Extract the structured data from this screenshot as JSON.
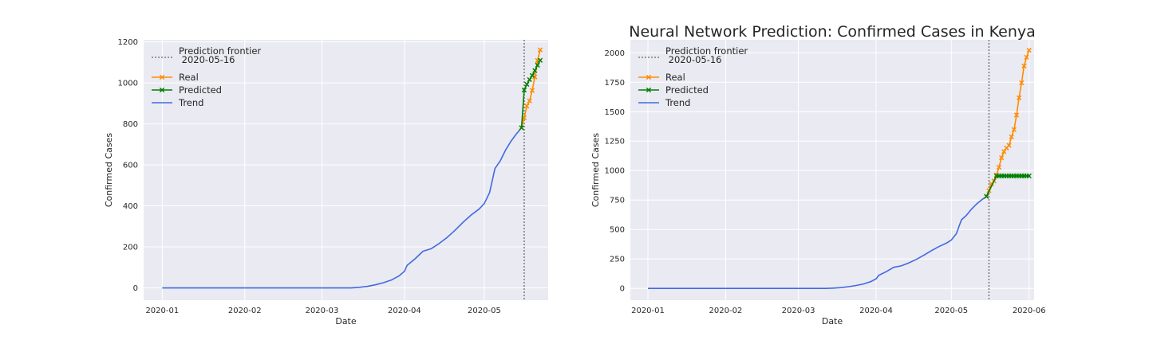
{
  "chart_data": [
    {
      "type": "line",
      "title": "",
      "xlabel": "Date",
      "ylabel": "Confirmed Cases",
      "grid": true,
      "legend_position": "top-left",
      "xlim": [
        "2019-12-25",
        "2020-05-25"
      ],
      "ylim": [
        -60,
        1210
      ],
      "x_ticks": [
        "2020-01-01",
        "2020-02-01",
        "2020-03-01",
        "2020-04-01",
        "2020-05-01"
      ],
      "x_tick_labels": [
        "2020-01",
        "2020-02",
        "2020-03",
        "2020-04",
        "2020-05"
      ],
      "y_ticks": [
        0,
        200,
        400,
        600,
        800,
        1000,
        1200
      ],
      "y_tick_labels": [
        "0",
        "200",
        "400",
        "600",
        "800",
        "1000",
        "1200"
      ],
      "frontier": {
        "date": "2020-05-16",
        "label": "Prediction frontier\n 2020-05-16",
        "color": "#808080"
      },
      "series": [
        {
          "name": "Real",
          "color": "#ff8c00",
          "marker": "x",
          "x": [
            "2020-05-15",
            "2020-05-16",
            "2020-05-17",
            "2020-05-18",
            "2020-05-19",
            "2020-05-20",
            "2020-05-21",
            "2020-05-22"
          ],
          "values": [
            781,
            830,
            887,
            912,
            963,
            1029,
            1109,
            1161
          ]
        },
        {
          "name": "Predicted",
          "color": "#008000",
          "marker": "x",
          "x": [
            "2020-05-15",
            "2020-05-16",
            "2020-05-17",
            "2020-05-18",
            "2020-05-19",
            "2020-05-20",
            "2020-05-21",
            "2020-05-22"
          ],
          "values": [
            781,
            965,
            993,
            1016,
            1036,
            1060,
            1086,
            1110
          ]
        },
        {
          "name": "Trend",
          "color": "#4169e1",
          "marker": null,
          "x": [
            "2020-01-01",
            "2020-03-12",
            "2020-03-15",
            "2020-03-18",
            "2020-03-21",
            "2020-03-24",
            "2020-03-27",
            "2020-03-30",
            "2020-04-01",
            "2020-04-02",
            "2020-04-05",
            "2020-04-08",
            "2020-04-11",
            "2020-04-14",
            "2020-04-17",
            "2020-04-20",
            "2020-04-23",
            "2020-04-26",
            "2020-04-29",
            "2020-05-01",
            "2020-05-03",
            "2020-05-05",
            "2020-05-07",
            "2020-05-09",
            "2020-05-11",
            "2020-05-13",
            "2020-05-15"
          ],
          "values": [
            0,
            0,
            3,
            7,
            15,
            25,
            38,
            59,
            81,
            110,
            142,
            179,
            191,
            216,
            246,
            281,
            320,
            355,
            384,
            411,
            465,
            582,
            620,
            672,
            715,
            750,
            781
          ]
        }
      ]
    },
    {
      "type": "line",
      "title": "Neural Network Prediction: Confirmed Cases in Kenya",
      "xlabel": "Date",
      "ylabel": "Confirmed Cases",
      "grid": true,
      "legend_position": "top-left",
      "xlim": [
        "2019-12-25",
        "2020-06-03"
      ],
      "ylim": [
        -100,
        2110
      ],
      "x_ticks": [
        "2020-01-01",
        "2020-02-01",
        "2020-03-01",
        "2020-04-01",
        "2020-05-01",
        "2020-06-01"
      ],
      "x_tick_labels": [
        "2020-01",
        "2020-02",
        "2020-03",
        "2020-04",
        "2020-05",
        "2020-06"
      ],
      "y_ticks": [
        0,
        250,
        500,
        750,
        1000,
        1250,
        1500,
        1750,
        2000
      ],
      "y_tick_labels": [
        "0",
        "250",
        "500",
        "750",
        "1000",
        "1250",
        "1500",
        "1750",
        "2000"
      ],
      "frontier": {
        "date": "2020-05-16",
        "label": "Prediction frontier\n 2020-05-16",
        "color": "#808080"
      },
      "series": [
        {
          "name": "Real",
          "color": "#ff8c00",
          "marker": "x",
          "x": [
            "2020-05-15",
            "2020-05-16",
            "2020-05-17",
            "2020-05-18",
            "2020-05-19",
            "2020-05-20",
            "2020-05-21",
            "2020-05-22",
            "2020-05-23",
            "2020-05-24",
            "2020-05-25",
            "2020-05-26",
            "2020-05-27",
            "2020-05-28",
            "2020-05-29",
            "2020-05-30",
            "2020-05-31",
            "2020-06-01"
          ],
          "values": [
            781,
            830,
            887,
            912,
            963,
            1029,
            1109,
            1161,
            1192,
            1214,
            1286,
            1348,
            1471,
            1618,
            1745,
            1888,
            1962,
            2021
          ]
        },
        {
          "name": "Predicted",
          "color": "#008000",
          "marker": "x",
          "x": [
            "2020-05-15",
            "2020-05-19",
            "2020-05-20",
            "2020-05-21",
            "2020-05-22",
            "2020-05-23",
            "2020-05-24",
            "2020-05-25",
            "2020-05-26",
            "2020-05-27",
            "2020-05-28",
            "2020-05-29",
            "2020-05-30",
            "2020-05-31",
            "2020-06-01"
          ],
          "values": [
            781,
            955,
            955,
            955,
            955,
            955,
            955,
            955,
            955,
            955,
            955,
            955,
            955,
            955,
            955
          ]
        },
        {
          "name": "Trend",
          "color": "#4169e1",
          "marker": null,
          "x": [
            "2020-01-01",
            "2020-03-12",
            "2020-03-15",
            "2020-03-18",
            "2020-03-21",
            "2020-03-24",
            "2020-03-27",
            "2020-03-30",
            "2020-04-01",
            "2020-04-02",
            "2020-04-05",
            "2020-04-08",
            "2020-04-11",
            "2020-04-14",
            "2020-04-17",
            "2020-04-20",
            "2020-04-23",
            "2020-04-26",
            "2020-04-29",
            "2020-05-01",
            "2020-05-03",
            "2020-05-05",
            "2020-05-07",
            "2020-05-09",
            "2020-05-11",
            "2020-05-13",
            "2020-05-15"
          ],
          "values": [
            0,
            0,
            3,
            7,
            15,
            25,
            38,
            59,
            81,
            110,
            142,
            179,
            191,
            216,
            246,
            281,
            320,
            355,
            384,
            411,
            465,
            582,
            620,
            672,
            715,
            750,
            781
          ]
        }
      ]
    }
  ]
}
